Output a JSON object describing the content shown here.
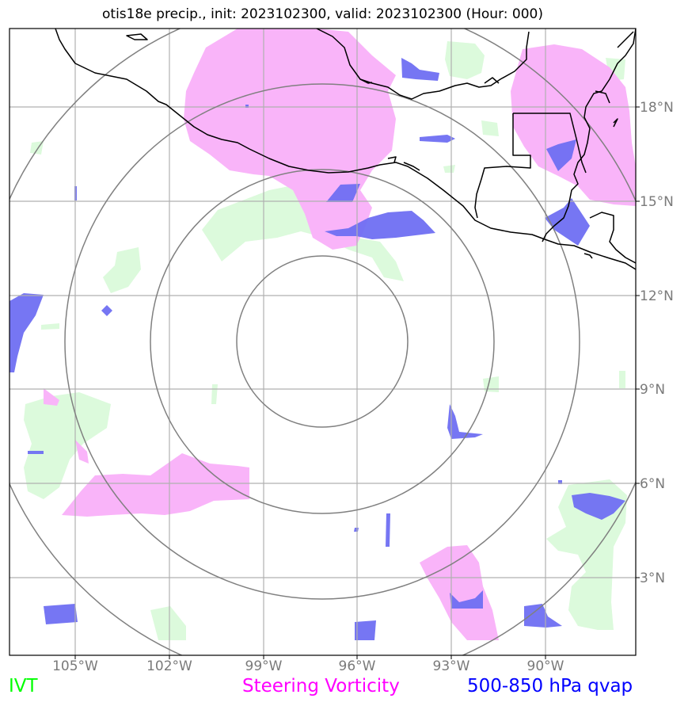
{
  "title": "otis18e precip., init: 2023102300, valid: 2023102300 (Hour: 000)",
  "map": {
    "lon_ticks": [
      "105°W",
      "102°W",
      "99°W",
      "96°W",
      "93°W",
      "90°W"
    ],
    "lat_ticks": [
      "18°N",
      "15°N",
      "12°N",
      "9°N",
      "6°N",
      "3°N"
    ]
  },
  "legend": {
    "ivt": "IVT",
    "steering_vorticity": "Steering Vorticity",
    "qvap": "500-850 hPa qvap"
  },
  "colors": {
    "ivt": "#00ff00",
    "steering_vorticity": "#ff00ff",
    "qvap": "#0000ff",
    "ivt_fill": "#dcfadc",
    "vorticity_fill": "#f9b4f9",
    "qvap_fill": "#6f6ff2",
    "grid": "#b0b0b0",
    "rings": "#808080",
    "coast": "#000000"
  }
}
